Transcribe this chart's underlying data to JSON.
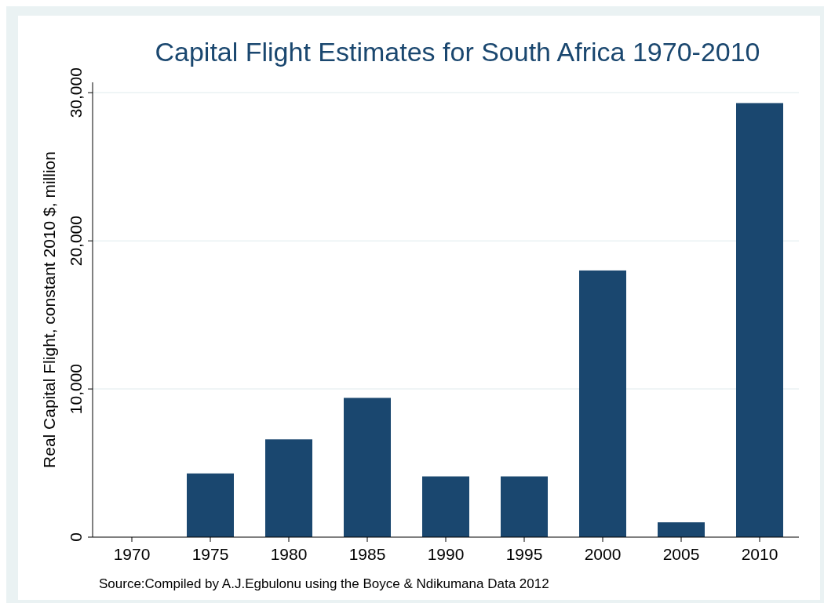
{
  "chart_data": {
    "type": "bar",
    "title": "Capital Flight Estimates for South Africa 1970-2010",
    "ylabel": "Real Capital Flight, constant 2010 $, million",
    "categories": [
      "1970",
      "1975",
      "1980",
      "1985",
      "1990",
      "1995",
      "2000",
      "2005",
      "2010"
    ],
    "values": [
      0,
      4300,
      6600,
      9400,
      4100,
      4100,
      18000,
      1000,
      29300
    ],
    "color": "#1a476f",
    "ylim": [
      0,
      30700
    ],
    "yticks": [
      {
        "value": 0,
        "label": "0"
      },
      {
        "value": 10000,
        "label": "10,000"
      },
      {
        "value": 20000,
        "label": "20,000"
      },
      {
        "value": 30000,
        "label": "30,000"
      }
    ],
    "grid": "y",
    "annotations": [
      "Source:Compiled by A.J.Egbulonu using the Boyce & Ndikumana Data 2012"
    ]
  }
}
